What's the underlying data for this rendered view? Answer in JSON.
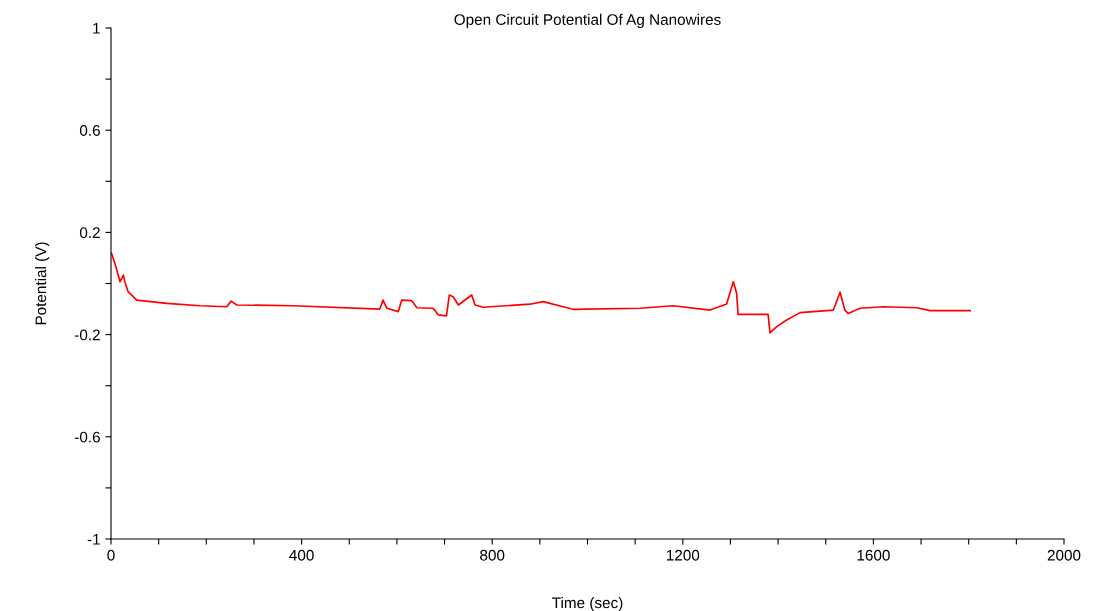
{
  "chart_data": {
    "type": "line",
    "title": "Open Circuit Potential Of Ag Nanowires",
    "xlabel": "Time (sec)",
    "ylabel": "Potential (V)",
    "xlim": [
      0,
      2000
    ],
    "ylim": [
      -1,
      1
    ],
    "xticks": [
      0,
      {
        "value": 100,
        "label": null
      },
      {
        "value": 200,
        "label": null
      },
      {
        "value": 300,
        "label": null
      },
      400,
      {
        "value": 500,
        "label": null
      },
      {
        "value": 600,
        "label": null
      },
      {
        "value": 700,
        "label": null
      },
      800,
      {
        "value": 900,
        "label": null
      },
      {
        "value": 1000,
        "label": null
      },
      {
        "value": 1100,
        "label": null
      },
      1200,
      {
        "value": 1300,
        "label": null
      },
      {
        "value": 1400,
        "label": null
      },
      {
        "value": 1500,
        "label": null
      },
      1600,
      {
        "value": 1700,
        "label": null
      },
      {
        "value": 1800,
        "label": null
      },
      {
        "value": 1900,
        "label": null
      },
      2000
    ],
    "yticks": [
      -1,
      {
        "value": -0.8,
        "label": null
      },
      -0.6,
      {
        "value": -0.4,
        "label": null
      },
      -0.2,
      {
        "value": 0,
        "label": null
      },
      0.2,
      {
        "value": 0.4,
        "label": null
      },
      0.6,
      {
        "value": 0.8,
        "label": null
      },
      1
    ],
    "marker": "none",
    "line_style": "solid",
    "series": [
      {
        "color": "#ff0000",
        "x": [
          1,
          8,
          19,
          26,
          29,
          36,
          54,
          117,
          187,
          243,
          252,
          264,
          383,
          564,
          571,
          579,
          603,
          610,
          631,
          642,
          676,
          687,
          704,
          710,
          718,
          729,
          757,
          764,
          781,
          879,
          907,
          949,
          970,
          1110,
          1180,
          1257,
          1292,
          1306,
          1313,
          1316,
          1379,
          1383,
          1397,
          1418,
          1446,
          1516,
          1530,
          1540,
          1547,
          1572,
          1621,
          1691,
          1719,
          1803
        ],
        "values": [
          0.118,
          0.08,
          0.007,
          0.033,
          0.007,
          -0.032,
          -0.065,
          -0.078,
          -0.087,
          -0.091,
          -0.069,
          -0.084,
          -0.087,
          -0.1,
          -0.065,
          -0.097,
          -0.11,
          -0.065,
          -0.067,
          -0.095,
          -0.097,
          -0.123,
          -0.127,
          -0.045,
          -0.052,
          -0.084,
          -0.045,
          -0.084,
          -0.093,
          -0.081,
          -0.071,
          -0.091,
          -0.101,
          -0.097,
          -0.087,
          -0.104,
          -0.08,
          0.007,
          -0.038,
          -0.121,
          -0.121,
          -0.193,
          -0.169,
          -0.143,
          -0.114,
          -0.104,
          -0.034,
          -0.104,
          -0.117,
          -0.097,
          -0.091,
          -0.095,
          -0.106,
          -0.106
        ]
      }
    ]
  }
}
